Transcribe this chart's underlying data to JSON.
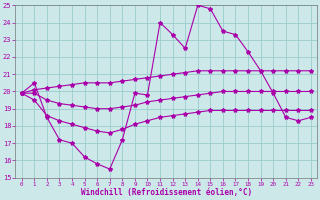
{
  "background_color": "#cce8e8",
  "grid_color": "#99cccc",
  "line_color": "#aa00aa",
  "xlabel": "Windchill (Refroidissement éolien,°C)",
  "xlabel_color": "#aa00aa",
  "tick_color": "#aa00aa",
  "xlim": [
    -0.5,
    23.5
  ],
  "ylim": [
    15,
    25
  ],
  "yticks": [
    15,
    16,
    17,
    18,
    19,
    20,
    21,
    22,
    23,
    24,
    25
  ],
  "xticks": [
    0,
    1,
    2,
    3,
    4,
    5,
    6,
    7,
    8,
    9,
    10,
    11,
    12,
    13,
    14,
    15,
    16,
    17,
    18,
    19,
    20,
    21,
    22,
    23
  ],
  "line1_x": [
    0,
    1,
    2,
    3,
    4,
    5,
    6,
    7,
    8,
    9,
    10,
    11,
    12,
    13,
    14,
    15,
    16,
    17,
    18,
    19,
    20,
    21,
    22,
    23
  ],
  "line1_y": [
    19.9,
    20.5,
    18.5,
    17.2,
    17.0,
    16.2,
    15.8,
    15.5,
    17.2,
    19.9,
    19.8,
    24.0,
    23.3,
    22.5,
    25.0,
    24.8,
    23.5,
    23.3,
    22.3,
    21.2,
    19.9,
    18.5,
    18.3,
    18.5
  ],
  "line2_x": [
    0,
    1,
    2,
    3,
    4,
    5,
    6,
    7,
    8,
    9,
    10,
    11,
    12,
    13,
    14,
    15,
    16,
    17,
    18,
    19,
    20,
    21,
    22,
    23
  ],
  "line2_y": [
    19.9,
    20.1,
    20.2,
    20.3,
    20.4,
    20.5,
    20.5,
    20.5,
    20.6,
    20.7,
    20.8,
    20.9,
    21.0,
    21.1,
    21.2,
    21.2,
    21.2,
    21.2,
    21.2,
    21.2,
    21.2,
    21.2,
    21.2,
    21.2
  ],
  "line3_x": [
    0,
    1,
    2,
    3,
    4,
    5,
    6,
    7,
    8,
    9,
    10,
    11,
    12,
    13,
    14,
    15,
    16,
    17,
    18,
    19,
    20,
    21,
    22,
    23
  ],
  "line3_y": [
    19.9,
    19.9,
    19.5,
    19.3,
    19.2,
    19.1,
    19.0,
    19.0,
    19.1,
    19.2,
    19.4,
    19.5,
    19.6,
    19.7,
    19.8,
    19.9,
    20.0,
    20.0,
    20.0,
    20.0,
    20.0,
    20.0,
    20.0,
    20.0
  ],
  "line4_x": [
    0,
    1,
    2,
    3,
    4,
    5,
    6,
    7,
    8,
    9,
    10,
    11,
    12,
    13,
    14,
    15,
    16,
    17,
    18,
    19,
    20,
    21,
    22,
    23
  ],
  "line4_y": [
    19.9,
    19.5,
    18.6,
    18.3,
    18.1,
    17.9,
    17.7,
    17.6,
    17.8,
    18.1,
    18.3,
    18.5,
    18.6,
    18.7,
    18.8,
    18.9,
    18.9,
    18.9,
    18.9,
    18.9,
    18.9,
    18.9,
    18.9,
    18.9
  ]
}
